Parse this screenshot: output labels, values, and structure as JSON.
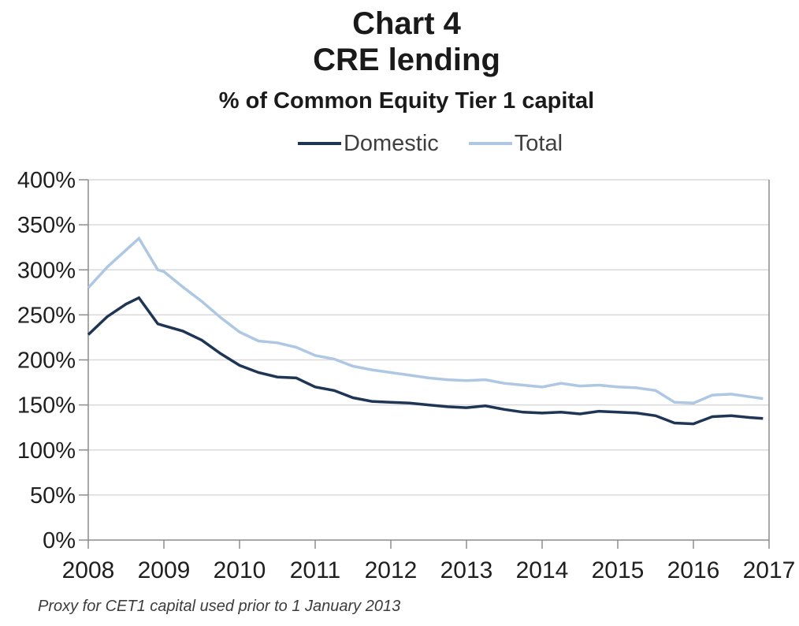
{
  "title": {
    "line1": "Chart 4",
    "line2": "CRE lending",
    "subtitle": "% of Common Equity Tier 1 capital"
  },
  "legend": {
    "items": [
      {
        "label": "Domestic",
        "color": "#1f3555"
      },
      {
        "label": "Total",
        "color": "#aec7e3"
      }
    ]
  },
  "footnote": "Proxy for CET1 capital used prior to 1 January 2013",
  "colors": {
    "gridline": "#d9d9d9",
    "axis": "#8c8c8c",
    "axis_text": "#1f1f1f"
  },
  "chart_data": {
    "type": "line",
    "title": "Chart 4 - CRE lending",
    "ylabel": "% of Common Equity Tier 1 capital",
    "xlabel": "",
    "grid": true,
    "legend_position": "top",
    "xlim": [
      2008,
      2017
    ],
    "ylim": [
      0,
      400
    ],
    "x": [
      2008.0,
      2008.25,
      2008.5,
      2008.67,
      2008.92,
      2009.0,
      2009.25,
      2009.5,
      2009.75,
      2010.0,
      2010.25,
      2010.5,
      2010.75,
      2011.0,
      2011.25,
      2011.5,
      2011.75,
      2012.0,
      2012.25,
      2012.5,
      2012.75,
      2013.0,
      2013.25,
      2013.5,
      2013.75,
      2014.0,
      2014.25,
      2014.5,
      2014.75,
      2015.0,
      2015.25,
      2015.5,
      2015.75,
      2016.0,
      2016.25,
      2016.5,
      2016.75,
      2016.92
    ],
    "series": [
      {
        "name": "Total",
        "color": "#aec7e3",
        "values": [
          280,
          303,
          322,
          335,
          300,
          298,
          281,
          265,
          247,
          231,
          221,
          219,
          214,
          205,
          201,
          193,
          189,
          186,
          183,
          180,
          178,
          177,
          178,
          174,
          172,
          170,
          174,
          171,
          172,
          170,
          169,
          166,
          153,
          152,
          161,
          162,
          159,
          157
        ]
      },
      {
        "name": "Domestic",
        "color": "#1f3555",
        "values": [
          228,
          248,
          262,
          269,
          240,
          238,
          232,
          222,
          207,
          194,
          186,
          181,
          180,
          170,
          166,
          158,
          154,
          153,
          152,
          150,
          148,
          147,
          149,
          145,
          142,
          141,
          142,
          140,
          143,
          142,
          141,
          138,
          130,
          129,
          137,
          138,
          136,
          135
        ]
      }
    ],
    "yticks": [
      {
        "value": 0,
        "label": "0%"
      },
      {
        "value": 50,
        "label": "50%"
      },
      {
        "value": 100,
        "label": "100%"
      },
      {
        "value": 150,
        "label": "150%"
      },
      {
        "value": 200,
        "label": "200%"
      },
      {
        "value": 250,
        "label": "250%"
      },
      {
        "value": 300,
        "label": "300%"
      },
      {
        "value": 350,
        "label": "350%"
      },
      {
        "value": 400,
        "label": "400%"
      }
    ],
    "xticks": [
      {
        "value": 2008,
        "label": "2008"
      },
      {
        "value": 2009,
        "label": "2009"
      },
      {
        "value": 2010,
        "label": "2010"
      },
      {
        "value": 2011,
        "label": "2011"
      },
      {
        "value": 2012,
        "label": "2012"
      },
      {
        "value": 2013,
        "label": "2013"
      },
      {
        "value": 2014,
        "label": "2014"
      },
      {
        "value": 2015,
        "label": "2015"
      },
      {
        "value": 2016,
        "label": "2016"
      },
      {
        "value": 2017,
        "label": "2017"
      }
    ]
  }
}
